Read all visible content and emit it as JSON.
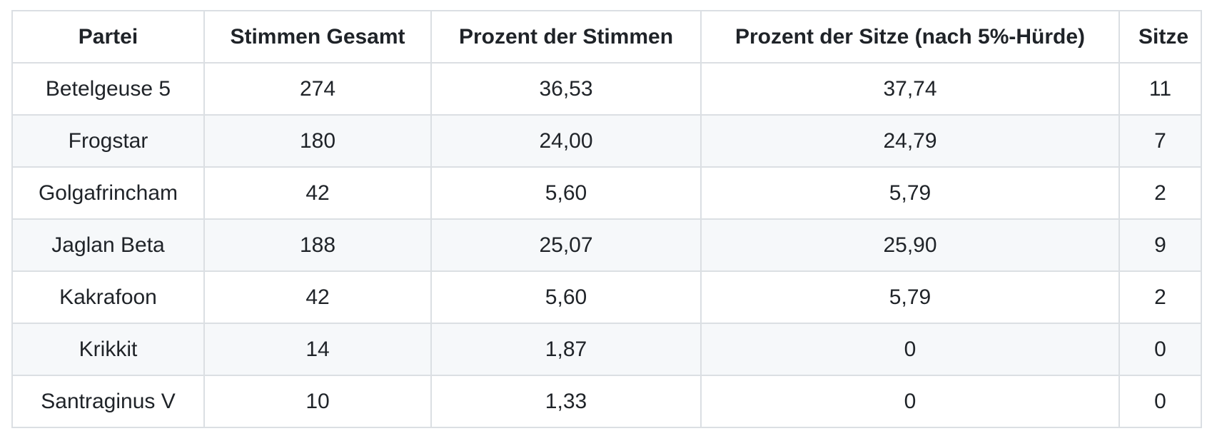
{
  "colors": {
    "text": "#1f2328",
    "border": "#dbdfe3",
    "row_alt_background": "#f6f8fa",
    "background": "#ffffff"
  },
  "table": {
    "headers": [
      "Partei",
      "Stimmen Gesamt",
      "Prozent der Stimmen",
      "Prozent der Sitze (nach 5%-Hürde)",
      "Sitze"
    ],
    "rows": [
      [
        "Betelgeuse 5",
        "274",
        "36,53",
        "37,74",
        "11"
      ],
      [
        "Frogstar",
        "180",
        "24,00",
        "24,79",
        "7"
      ],
      [
        "Golgafrincham",
        "42",
        "5,60",
        "5,79",
        "2"
      ],
      [
        "Jaglan Beta",
        "188",
        "25,07",
        "25,90",
        "9"
      ],
      [
        "Kakrafoon",
        "42",
        "5,60",
        "5,79",
        "2"
      ],
      [
        "Krikkit",
        "14",
        "1,87",
        "0",
        "0"
      ],
      [
        "Santraginus V",
        "10",
        "1,33",
        "0",
        "0"
      ]
    ]
  },
  "chart_data": {
    "type": "table",
    "columns": [
      "Partei",
      "Stimmen Gesamt",
      "Prozent der Stimmen",
      "Prozent der Sitze (nach 5%-Hürde)",
      "Sitze"
    ],
    "rows": [
      [
        "Betelgeuse 5",
        274,
        36.53,
        37.74,
        11
      ],
      [
        "Frogstar",
        180,
        24.0,
        24.79,
        7
      ],
      [
        "Golgafrincham",
        42,
        5.6,
        5.79,
        2
      ],
      [
        "Jaglan Beta",
        188,
        25.07,
        25.9,
        9
      ],
      [
        "Kakrafoon",
        42,
        5.6,
        5.79,
        2
      ],
      [
        "Krikkit",
        14,
        1.87,
        0,
        0
      ],
      [
        "Santraginus V",
        10,
        1.33,
        0,
        0
      ]
    ],
    "decimal_separator": ","
  }
}
